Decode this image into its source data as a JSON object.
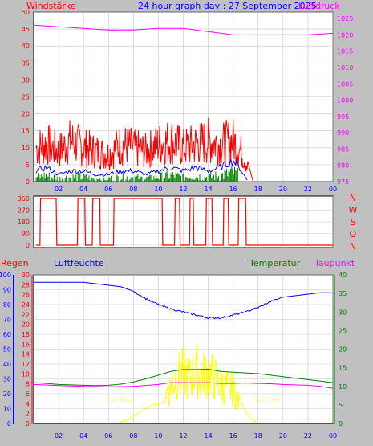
{
  "header": {
    "title": "24 hour graph day : 27 September 2025",
    "left_label": "Windstärke",
    "right_label": "Luftdruck"
  },
  "wind_panel": {
    "y_ticks": [
      "0",
      "5",
      "10",
      "15",
      "20",
      "25",
      "30",
      "35",
      "40",
      "45",
      "50"
    ],
    "pressure_ticks": [
      "975",
      "980",
      "985",
      "990",
      "995",
      "1000",
      "1005",
      "1010",
      "1015",
      "1020",
      "1025"
    ],
    "x_ticks": [
      "02",
      "04",
      "06",
      "08",
      "10",
      "12",
      "14",
      "16",
      "18",
      "20",
      "22",
      "00"
    ]
  },
  "dir_panel": {
    "y_ticks": [
      "0",
      "90",
      "180",
      "270",
      "360"
    ],
    "compass": [
      "N",
      "W",
      "S",
      "O",
      "N"
    ]
  },
  "bottom_panel": {
    "labels": {
      "regen": "Regen",
      "luftfeuchte": "Luftfeuchte",
      "temperatur": "Temperatur",
      "taupunkt": "Taupunkt"
    },
    "humidity_ticks": [
      "0",
      "10",
      "20",
      "30",
      "40",
      "50",
      "60",
      "70",
      "80",
      "90",
      "100"
    ],
    "rain_ticks": [
      "0",
      "2",
      "4",
      "6",
      "8",
      "10",
      "12",
      "14",
      "16",
      "18",
      "20",
      "22",
      "24",
      "26",
      "28",
      "30"
    ],
    "temp_ticks": [
      "0",
      "5",
      "10",
      "15",
      "20",
      "25",
      "30",
      "35",
      "40"
    ],
    "x_ticks": [
      "02",
      "04",
      "06",
      "08",
      "10",
      "12",
      "14",
      "16",
      "18",
      "20",
      "22",
      "00"
    ],
    "sun_rise": "Sun Rise",
    "sun_set": "Sun Set"
  },
  "colors": {
    "wind": "#ff0000",
    "gust": "#ff0000",
    "avg_wind": "#0000ff",
    "wind_low": "#008000",
    "pressure": "#ff00ff",
    "direction": "#ff0000",
    "humidity": "#0000ff",
    "temperature": "#008000",
    "dewpoint": "#ff00ff",
    "solar": "#ffff00",
    "rain": "#ff0000"
  },
  "chart_data": [
    {
      "type": "line",
      "title": "24 hour graph day : 27 September 2025",
      "ylabel": "Windstärke",
      "ylabel_right": "Luftdruck",
      "x_range": [
        0,
        24
      ],
      "ylim": [
        0,
        50
      ],
      "ylim_right": [
        975,
        1027
      ],
      "grid": true,
      "series": [
        {
          "name": "Windstärke",
          "x": [
            0.2,
            1,
            2,
            3,
            4,
            5,
            6,
            7,
            8,
            9,
            10,
            11,
            12,
            13,
            14,
            15,
            16,
            16.8,
            17.3,
            17.6,
            24
          ],
          "values": [
            10,
            11,
            9,
            12,
            10,
            9,
            8,
            11,
            10,
            9,
            11,
            12,
            10,
            11,
            12,
            11,
            12,
            8,
            3,
            0,
            0
          ]
        },
        {
          "name": "",
          "x": [
            0.2,
            1,
            2,
            3,
            4,
            5,
            6,
            7,
            8,
            9,
            10,
            11,
            12,
            13,
            14,
            15,
            16,
            16.5,
            17.2,
            24
          ],
          "values": [
            3,
            4,
            2,
            3,
            3,
            2,
            2,
            3,
            3,
            2,
            3,
            4,
            3,
            4,
            3,
            4,
            6,
            4,
            0,
            0
          ]
        },
        {
          "name": "Luftdruck",
          "x": [
            0,
            2,
            4,
            6,
            8,
            10,
            12,
            14,
            16,
            18,
            20,
            22,
            24
          ],
          "values": [
            1023,
            1022.5,
            1022,
            1021.5,
            1021.5,
            1022,
            1022,
            1021,
            1020,
            1020,
            1020,
            1020,
            1020.5
          ]
        }
      ]
    },
    {
      "type": "line",
      "ylabel_right": "N W S O N",
      "ylim": [
        0,
        360
      ],
      "series": [
        {
          "name": "",
          "x": [
            0.2,
            0.5,
            0.55,
            1.8,
            1.85,
            3.5,
            3.55,
            4.1,
            4.15,
            4.7,
            4.75,
            5.3,
            5.35,
            6.4,
            6.45,
            10.3,
            10.35,
            11.3,
            11.35,
            11.7,
            11.75,
            12.5,
            12.55,
            12.8,
            12.85,
            13.8,
            13.85,
            14.3,
            14.35,
            15.2,
            15.25,
            15.6,
            15.65,
            16.4,
            16.45,
            17.0,
            17.05,
            24
          ],
          "values": [
            0,
            0,
            360,
            360,
            0,
            0,
            360,
            360,
            0,
            0,
            360,
            360,
            0,
            0,
            360,
            360,
            0,
            0,
            360,
            360,
            0,
            0,
            360,
            360,
            0,
            0,
            360,
            360,
            0,
            0,
            360,
            360,
            0,
            0,
            360,
            360,
            0,
            0
          ]
        }
      ]
    },
    {
      "type": "line",
      "ylabel": "Luftfeuchte",
      "ylim": [
        0,
        100
      ],
      "ylim_rain": [
        0,
        30
      ],
      "ylim_temp": [
        0,
        40
      ],
      "series": [
        {
          "name": "Luftfeuchte",
          "x": [
            0,
            2,
            4,
            6,
            7,
            8,
            9,
            10,
            11,
            12,
            13,
            14,
            15,
            16,
            17,
            18,
            19,
            20,
            21,
            22,
            23,
            24
          ],
          "values": [
            95,
            95,
            95,
            93,
            92,
            89,
            84,
            80,
            77,
            75,
            73,
            71,
            71,
            73,
            75,
            78,
            82,
            85,
            86,
            87,
            88,
            88
          ]
        },
        {
          "name": "Temperatur",
          "x": [
            0,
            1,
            2,
            3,
            4,
            5,
            6,
            7,
            8,
            9,
            10,
            11,
            12,
            13,
            14,
            15,
            16,
            17,
            18,
            19,
            20,
            21,
            22,
            23,
            24
          ],
          "values": [
            11,
            10.8,
            10.5,
            10.4,
            10.3,
            10.2,
            10.3,
            10.6,
            11.2,
            12,
            13,
            14,
            14.5,
            14.5,
            14.6,
            14,
            13.8,
            13.6,
            13.4,
            13,
            12.6,
            12.2,
            11.8,
            11.4,
            11
          ]
        },
        {
          "name": "Taupunkt",
          "x": [
            0,
            2,
            4,
            6,
            8,
            10,
            11,
            12,
            13,
            14,
            15,
            16,
            17,
            18,
            19,
            20,
            21,
            22,
            23,
            24
          ],
          "values": [
            10.5,
            10.2,
            10,
            9.9,
            10,
            10.5,
            11,
            11,
            11,
            11,
            10.8,
            10.8,
            10.9,
            10.8,
            10.7,
            10.5,
            10.4,
            10.3,
            10,
            9.5
          ]
        },
        {
          "name": "Sun Rise / Sun Set",
          "x": [
            6.8,
            7.5,
            8,
            8.5,
            9,
            9.5,
            10,
            10.5,
            11,
            11.5,
            12,
            12.5,
            13,
            13.5,
            14,
            14.5,
            15,
            15.5,
            16,
            16.5,
            17,
            17.5,
            18,
            18.5
          ],
          "values": [
            0,
            1,
            2,
            3,
            4,
            5,
            5,
            6,
            14,
            17,
            18,
            16,
            19,
            17,
            18,
            16,
            14,
            13,
            12,
            7,
            3,
            1,
            0,
            0
          ]
        },
        {
          "name": "Regen",
          "x": [
            0,
            24
          ],
          "values": [
            0,
            0
          ]
        }
      ]
    }
  ]
}
